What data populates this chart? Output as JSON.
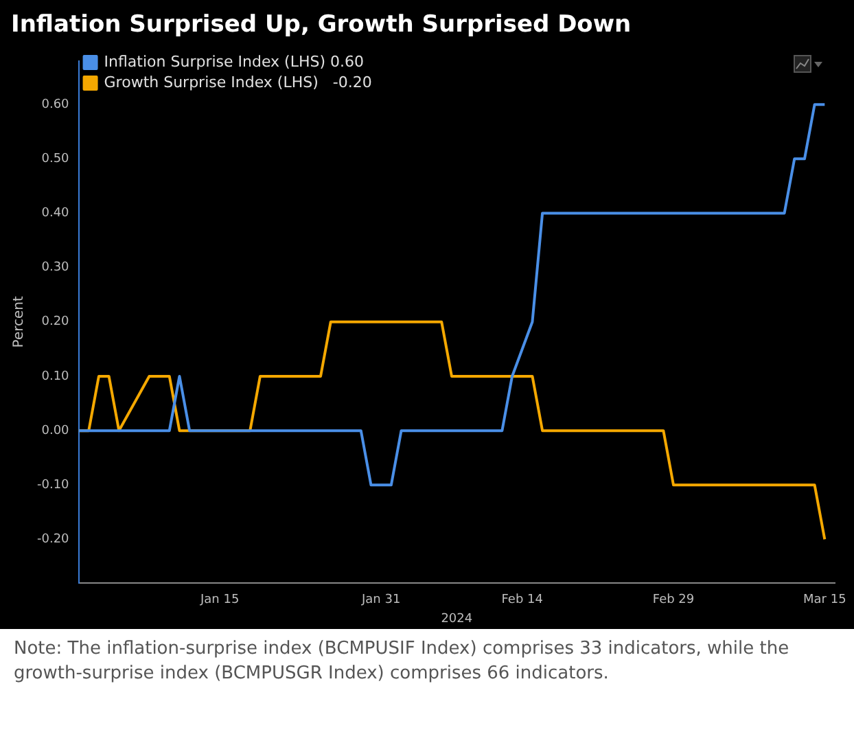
{
  "chart_data": {
    "type": "line",
    "title": "Inflation Surprised Up, Growth Surprised Down",
    "xlabel": "2024",
    "ylabel": "Percent",
    "annotations": [
      "Note: The inflation-surprise index (BCMPUSIF Index) comprises 33 indicators, while the growth-surprise index (BCMPUSGR Index) comprises 66 indicators."
    ],
    "series": [
      {
        "name": "Inflation Surprise Index (LHS) 0.60",
        "color": "#4a8fe7",
        "x": [
          "2024-01-01",
          "2024-01-10",
          "2024-01-11",
          "2024-01-12",
          "2024-01-29",
          "2024-01-30",
          "2024-02-01",
          "2024-02-02",
          "2024-02-12",
          "2024-02-13",
          "2024-02-15",
          "2024-02-16",
          "2024-03-11",
          "2024-03-12",
          "2024-03-13",
          "2024-03-14",
          "2024-03-15"
        ],
        "values": [
          0,
          0,
          0.1,
          0,
          0,
          -0.1,
          -0.1,
          0,
          0,
          0.1,
          0.2,
          0.4,
          0.4,
          0.5,
          0.5,
          0.6,
          0.6
        ]
      },
      {
        "name": "Growth Surprise Index (LHS)   -0.20",
        "color": "#f5a800",
        "x": [
          "2024-01-01",
          "2024-01-02",
          "2024-01-03",
          "2024-01-04",
          "2024-01-05",
          "2024-01-08",
          "2024-01-10",
          "2024-01-11",
          "2024-01-18",
          "2024-01-19",
          "2024-01-25",
          "2024-01-26",
          "2024-02-06",
          "2024-02-07",
          "2024-02-15",
          "2024-02-16",
          "2024-02-28",
          "2024-02-29",
          "2024-03-14",
          "2024-03-15"
        ],
        "values": [
          0,
          0,
          0.1,
          0.1,
          0,
          0.1,
          0.1,
          0,
          0,
          0.1,
          0.1,
          0.2,
          0.2,
          0.1,
          0.1,
          0,
          0,
          -0.1,
          -0.1,
          -0.2
        ]
      }
    ],
    "xlim": [
      "2024-01-01",
      "2024-03-16"
    ],
    "xticks": [
      {
        "value": "2024-01-15",
        "label": "Jan 15"
      },
      {
        "value": "2024-01-31",
        "label": "Jan 31"
      },
      {
        "value": "2024-02-14",
        "label": "Feb 14"
      },
      {
        "value": "2024-02-29",
        "label": "Feb 29"
      },
      {
        "value": "2024-03-15",
        "label": "Mar 15"
      }
    ],
    "ylim": [
      -0.28,
      0.68
    ],
    "yticks": [
      {
        "value": -0.2,
        "label": "-0.20"
      },
      {
        "value": -0.1,
        "label": "-0.10"
      },
      {
        "value": 0,
        "label": "0.00"
      },
      {
        "value": 0.1,
        "label": "0.10"
      },
      {
        "value": 0.2,
        "label": "0.20"
      },
      {
        "value": 0.3,
        "label": "0.30"
      },
      {
        "value": 0.4,
        "label": "0.40"
      },
      {
        "value": 0.5,
        "label": "0.50"
      },
      {
        "value": 0.6,
        "label": "0.60"
      }
    ],
    "grid": false,
    "legend": "top left",
    "marker": "none",
    "line_style": "solid"
  }
}
